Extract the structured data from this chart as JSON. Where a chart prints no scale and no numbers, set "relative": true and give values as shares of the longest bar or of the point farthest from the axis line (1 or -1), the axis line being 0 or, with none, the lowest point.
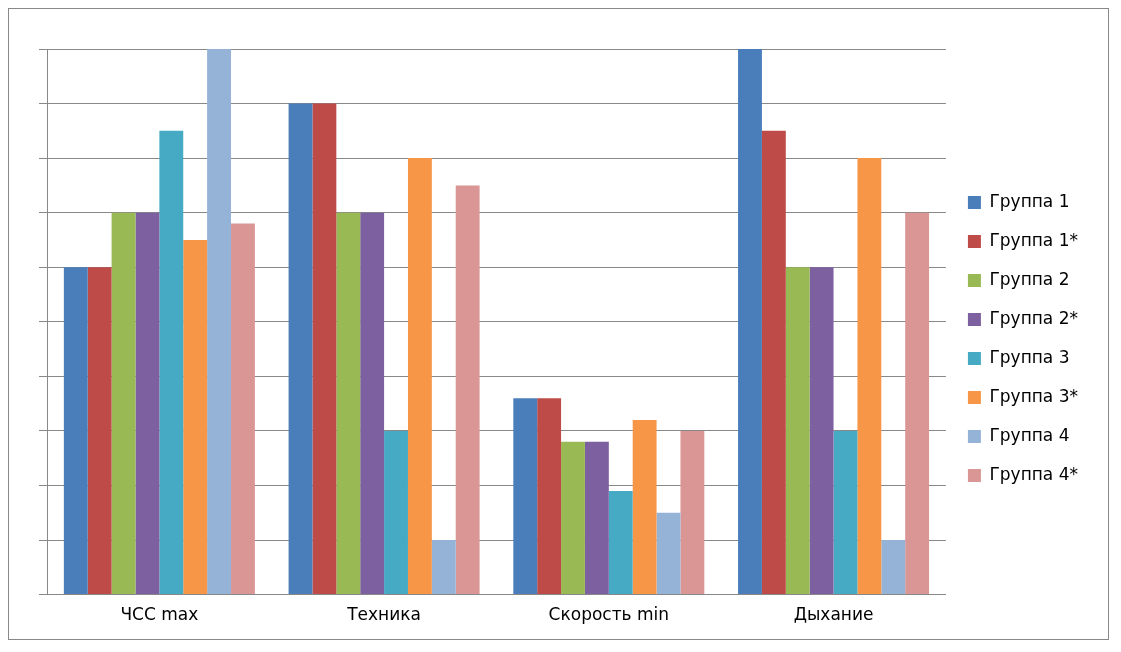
{
  "chart_data": {
    "type": "bar",
    "relative": true,
    "grid": "y",
    "legend": "right",
    "categories": [
      "ЧСС max",
      "Техника",
      "Скорость min",
      "Дыхание"
    ],
    "series": [
      {
        "name": "Группа 1",
        "color": "#4a7ebb",
        "values": [
          0.6,
          0.9,
          0.36,
          1
        ]
      },
      {
        "name": "Группа 1*",
        "color": "#be4b48",
        "values": [
          0.6,
          0.9,
          0.36,
          0.85
        ]
      },
      {
        "name": "Группа 2",
        "color": "#98b954",
        "values": [
          0.7,
          0.7,
          0.28,
          0.6
        ]
      },
      {
        "name": "Группа 2*",
        "color": "#7d60a0",
        "values": [
          0.7,
          0.7,
          0.28,
          0.6
        ]
      },
      {
        "name": "Группа 3",
        "color": "#46aac5",
        "values": [
          0.85,
          0.3,
          0.19,
          0.3
        ]
      },
      {
        "name": "Группа 3*",
        "color": "#f79646",
        "values": [
          0.65,
          0.8,
          0.32,
          0.8
        ]
      },
      {
        "name": "Группа 4",
        "color": "#95b3d7",
        "values": [
          1,
          0.1,
          0.15,
          0.1
        ]
      },
      {
        "name": "Группа 4*",
        "color": "#d99694",
        "values": [
          0.68,
          0.75,
          0.3,
          0.7
        ]
      }
    ]
  }
}
